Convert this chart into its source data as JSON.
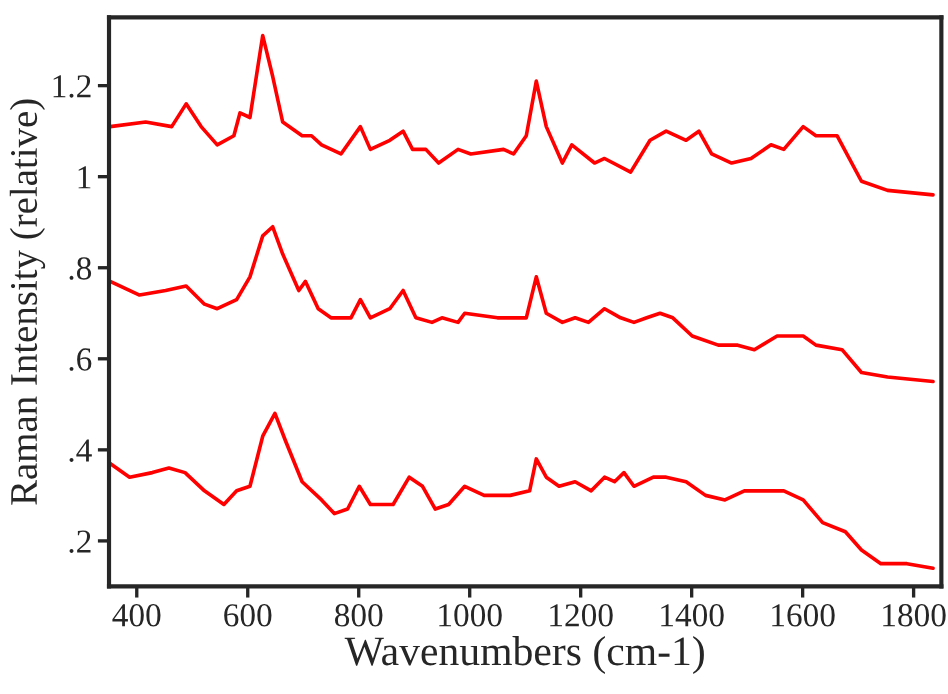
{
  "chart_data": {
    "type": "line",
    "xlabel": "Wavenumbers (cm-1)",
    "ylabel": "Raman Intensity (relative)",
    "xlim": [
      350,
      1850
    ],
    "ylim": [
      0.1,
      1.35
    ],
    "xticks": [
      400,
      600,
      800,
      1000,
      1200,
      1400,
      1600,
      1800
    ],
    "yticks": [
      {
        "value": 0.2,
        "label": ".2"
      },
      {
        "value": 0.4,
        "label": ".4"
      },
      {
        "value": 0.6,
        "label": ".6"
      },
      {
        "value": 0.8,
        "label": ".8"
      },
      {
        "value": 1,
        "label": "1"
      },
      {
        "value": 1.2,
        "label": "1.2"
      }
    ],
    "grid": false,
    "marker": "none",
    "line_style": "solid",
    "series": [
      {
        "color": "#ff0000",
        "x": [
          352,
          416,
          463,
          489,
          516,
          545,
          575,
          586,
          604,
          627,
          645,
          663,
          698,
          715,
          733,
          768,
          803,
          821,
          856,
          880,
          897,
          921,
          944,
          979,
          1002,
          1061,
          1079,
          1102,
          1120,
          1138,
          1167,
          1184,
          1225,
          1243,
          1290,
          1325,
          1354,
          1390,
          1413,
          1436,
          1472,
          1507,
          1543,
          1566,
          1601,
          1624,
          1662,
          1706,
          1753,
          1835
        ],
        "values": [
          1.11,
          1.12,
          1.11,
          1.16,
          1.11,
          1.07,
          1.09,
          1.14,
          1.13,
          1.31,
          1.22,
          1.12,
          1.09,
          1.09,
          1.07,
          1.05,
          1.11,
          1.06,
          1.08,
          1.1,
          1.06,
          1.06,
          1.03,
          1.06,
          1.05,
          1.06,
          1.05,
          1.09,
          1.21,
          1.11,
          1.03,
          1.07,
          1.03,
          1.04,
          1.01,
          1.08,
          1.1,
          1.08,
          1.1,
          1.05,
          1.03,
          1.04,
          1.07,
          1.06,
          1.11,
          1.09,
          1.09,
          0.99,
          0.97,
          0.96
        ]
      },
      {
        "color": "#ff0000",
        "x": [
          352,
          405,
          452,
          489,
          522,
          545,
          580,
          604,
          627,
          645,
          663,
          692,
          704,
          727,
          750,
          786,
          803,
          821,
          856,
          880,
          903,
          932,
          950,
          979,
          991,
          1050,
          1102,
          1120,
          1138,
          1167,
          1190,
          1214,
          1243,
          1272,
          1296,
          1319,
          1343,
          1366,
          1401,
          1448,
          1483,
          1513,
          1554,
          1601,
          1624,
          1671,
          1706,
          1753,
          1835
        ],
        "values": [
          0.77,
          0.74,
          0.75,
          0.76,
          0.72,
          0.71,
          0.73,
          0.78,
          0.87,
          0.89,
          0.83,
          0.75,
          0.77,
          0.71,
          0.69,
          0.69,
          0.73,
          0.69,
          0.71,
          0.75,
          0.69,
          0.68,
          0.69,
          0.68,
          0.7,
          0.69,
          0.69,
          0.78,
          0.7,
          0.68,
          0.69,
          0.68,
          0.71,
          0.69,
          0.68,
          0.69,
          0.7,
          0.69,
          0.65,
          0.63,
          0.63,
          0.62,
          0.65,
          0.65,
          0.63,
          0.62,
          0.57,
          0.56,
          0.55
        ]
      },
      {
        "color": "#ff0000",
        "x": [
          352,
          387,
          428,
          458,
          487,
          522,
          557,
          580,
          604,
          627,
          649,
          668,
          698,
          733,
          756,
          780,
          801,
          821,
          844,
          862,
          891,
          915,
          938,
          962,
          991,
          1026,
          1073,
          1108,
          1120,
          1138,
          1161,
          1190,
          1219,
          1243,
          1261,
          1278,
          1296,
          1331,
          1354,
          1390,
          1425,
          1460,
          1495,
          1530,
          1566,
          1601,
          1636,
          1677,
          1706,
          1741,
          1788,
          1835
        ],
        "values": [
          0.37,
          0.34,
          0.35,
          0.36,
          0.35,
          0.31,
          0.28,
          0.31,
          0.32,
          0.43,
          0.48,
          0.42,
          0.33,
          0.29,
          0.26,
          0.27,
          0.32,
          0.28,
          0.28,
          0.28,
          0.34,
          0.32,
          0.27,
          0.28,
          0.32,
          0.3,
          0.3,
          0.31,
          0.38,
          0.34,
          0.32,
          0.33,
          0.31,
          0.34,
          0.33,
          0.35,
          0.32,
          0.34,
          0.34,
          0.33,
          0.3,
          0.29,
          0.31,
          0.31,
          0.31,
          0.29,
          0.24,
          0.22,
          0.18,
          0.15,
          0.15,
          0.14
        ]
      }
    ]
  }
}
